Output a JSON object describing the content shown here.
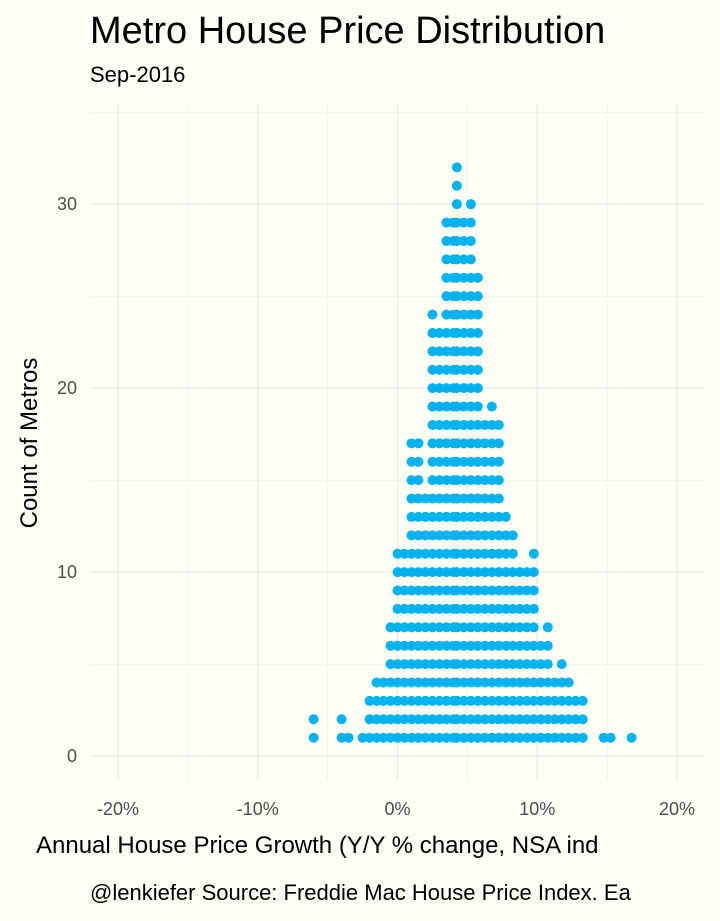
{
  "title": "Metro House Price Distribution",
  "subtitle": "Sep-2016",
  "caption": "@lenkiefer Source: Freddie Mac House Price Index. Ea",
  "chart_data": {
    "type": "scatter",
    "subtype": "dot-histogram",
    "title": "Metro House Price Distribution",
    "subtitle": "Sep-2016",
    "xlabel": "Annual House Price Growth (Y/Y % change, NSA ind",
    "ylabel": "Count of Metros",
    "x_unit": "percent",
    "xlim": [
      -22,
      22
    ],
    "ylim": [
      -1.3,
      35.5
    ],
    "x_ticks": [
      -20,
      -10,
      0,
      10,
      20
    ],
    "x_tick_labels": [
      "-20%",
      "-10%",
      "0%",
      "10%",
      "20%"
    ],
    "y_ticks": [
      0,
      10,
      20,
      30
    ],
    "y_tick_labels": [
      "0",
      "10",
      "20",
      "30"
    ],
    "grid": true,
    "point_color": "#00b2ee",
    "bins": [
      {
        "x": -6.0,
        "count": 2
      },
      {
        "x": -4.0,
        "count": 2
      },
      {
        "x": -3.5,
        "count": 1
      },
      {
        "x": -2.5,
        "count": 1
      },
      {
        "x": -2.0,
        "count": 3
      },
      {
        "x": -1.5,
        "count": 4
      },
      {
        "x": -1.0,
        "count": 4
      },
      {
        "x": -0.5,
        "count": 7
      },
      {
        "x": 0.0,
        "count": 11
      },
      {
        "x": 0.5,
        "count": 11
      },
      {
        "x": 1.0,
        "count": 17
      },
      {
        "x": 1.5,
        "count": 17
      },
      {
        "x": 2.0,
        "count": 14
      },
      {
        "x": 2.5,
        "count": 24
      },
      {
        "x": 3.0,
        "count": 23
      },
      {
        "x": 3.5,
        "count": 29
      },
      {
        "x": 4.0,
        "count": 29
      },
      {
        "x": 4.25,
        "count": 32
      },
      {
        "x": 4.75,
        "count": 29
      },
      {
        "x": 5.25,
        "count": 30
      },
      {
        "x": 5.75,
        "count": 26
      },
      {
        "x": 6.25,
        "count": 18
      },
      {
        "x": 6.75,
        "count": 19
      },
      {
        "x": 7.25,
        "count": 18
      },
      {
        "x": 7.75,
        "count": 13
      },
      {
        "x": 8.25,
        "count": 12
      },
      {
        "x": 8.75,
        "count": 10
      },
      {
        "x": 9.25,
        "count": 10
      },
      {
        "x": 9.75,
        "count": 11
      },
      {
        "x": 10.25,
        "count": 6
      },
      {
        "x": 10.75,
        "count": 7
      },
      {
        "x": 11.25,
        "count": 4
      },
      {
        "x": 11.75,
        "count": 5
      },
      {
        "x": 12.25,
        "count": 4
      },
      {
        "x": 12.75,
        "count": 3
      },
      {
        "x": 13.25,
        "count": 3
      },
      {
        "x": 14.75,
        "count": 1
      },
      {
        "x": 15.25,
        "count": 1
      },
      {
        "x": 16.75,
        "count": 1
      }
    ]
  }
}
